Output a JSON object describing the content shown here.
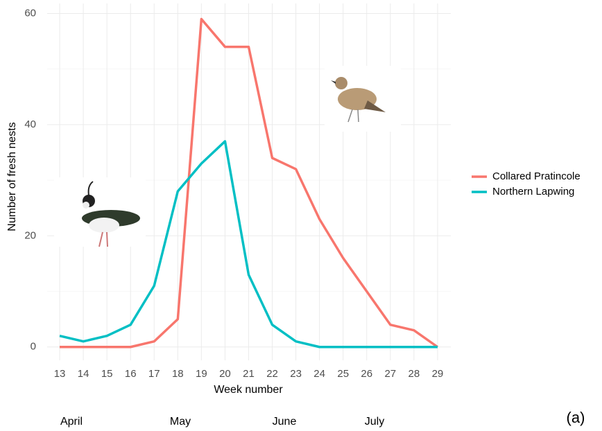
{
  "chart_data": {
    "type": "line",
    "x_label": "Week number",
    "y_label": "Number of fresh nests",
    "x": [
      13,
      14,
      15,
      16,
      17,
      18,
      19,
      20,
      21,
      22,
      23,
      24,
      25,
      26,
      27,
      28,
      29
    ],
    "series": [
      {
        "name": "Collared Pratincole",
        "color": "#F8766D",
        "values": [
          0,
          0,
          0,
          0,
          1,
          5,
          59,
          54,
          54,
          34,
          32,
          23,
          16,
          10,
          4,
          3,
          0
        ]
      },
      {
        "name": "Northern Lapwing",
        "color": "#00BFC4",
        "values": [
          2,
          1,
          2,
          4,
          11,
          28,
          33,
          37,
          13,
          4,
          1,
          0,
          0,
          0,
          0,
          0,
          0
        ]
      }
    ],
    "xlim": [
      12.47,
      29.56
    ],
    "ylim": [
      -2.4,
      61.8
    ],
    "xticks": [
      13,
      14,
      15,
      16,
      17,
      18,
      19,
      20,
      21,
      22,
      23,
      24,
      25,
      26,
      27,
      28,
      29
    ],
    "yticks": [
      0,
      20,
      40,
      60
    ],
    "y_minor_ticks": [
      10,
      30,
      50
    ],
    "grid": true,
    "legend": "right",
    "month_labels": [
      "April",
      "May",
      "June",
      "July"
    ],
    "panel_label": "(a)"
  }
}
